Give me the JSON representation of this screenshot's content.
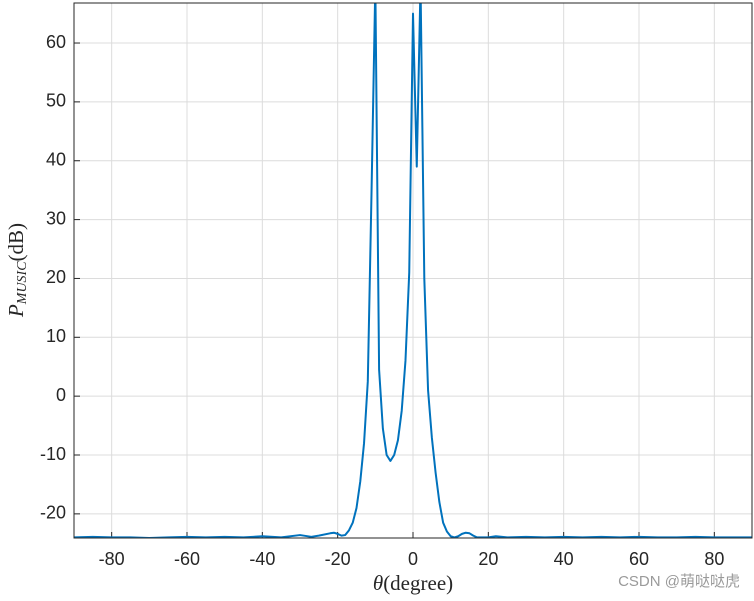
{
  "chart_data": {
    "type": "line",
    "xlabel": {
      "symbol": "θ",
      "unit": "(degree)"
    },
    "ylabel": {
      "symbol": "P",
      "subscript": "MUSIC",
      "unit": "(dB)"
    },
    "watermark": "CSDN @萌哒哒虎",
    "x": [
      -90,
      -85,
      -80,
      -75,
      -70,
      -65,
      -60,
      -55,
      -50,
      -45,
      -40,
      -35,
      -30,
      -27,
      -25,
      -22,
      -21,
      -20,
      -19,
      -18,
      -17,
      -16,
      -15,
      -14,
      -13,
      -12,
      -11,
      -10,
      -9,
      -8,
      -7,
      -6,
      -5,
      -4,
      -3,
      -2,
      -1,
      0,
      1,
      2,
      3,
      4,
      5,
      6,
      7,
      8,
      9,
      10,
      11,
      12,
      13,
      14,
      15,
      16,
      17,
      18,
      20,
      22,
      25,
      30,
      35,
      40,
      45,
      50,
      55,
      60,
      65,
      70,
      75,
      80,
      85,
      90
    ],
    "series": [
      {
        "color": "#0072BD",
        "values": [
          -24.0,
          -23.9,
          -24.0,
          -24.0,
          -24.1,
          -24.0,
          -23.9,
          -24.0,
          -23.9,
          -24.0,
          -23.8,
          -24.0,
          -23.6,
          -23.9,
          -23.7,
          -23.3,
          -23.2,
          -23.4,
          -23.7,
          -23.6,
          -22.8,
          -21.5,
          -19,
          -14.5,
          -8,
          2.5,
          35,
          70,
          4.5,
          -5.5,
          -10,
          -11,
          -10,
          -7.5,
          -2.5,
          6,
          21,
          65,
          39,
          70,
          20,
          1,
          -7,
          -13,
          -18,
          -21.5,
          -23,
          -23.8,
          -24,
          -23.8,
          -23.4,
          -23.2,
          -23.3,
          -23.7,
          -24,
          -24,
          -24,
          -23.8,
          -24,
          -23.9,
          -24,
          -23.9,
          -24.0,
          -23.9,
          -24.0,
          -23.9,
          -24.0,
          -24.0,
          -23.9,
          -24.0,
          -24.0,
          -24.0
        ]
      }
    ],
    "xlim": [
      -90,
      90
    ],
    "ylim": [
      -24.1,
      66.8
    ],
    "xticks": [
      -80,
      -60,
      -40,
      -20,
      0,
      20,
      40,
      60,
      80
    ],
    "yticks": [
      -20,
      -10,
      0,
      10,
      20,
      30,
      40,
      50,
      60
    ],
    "grid": true
  }
}
